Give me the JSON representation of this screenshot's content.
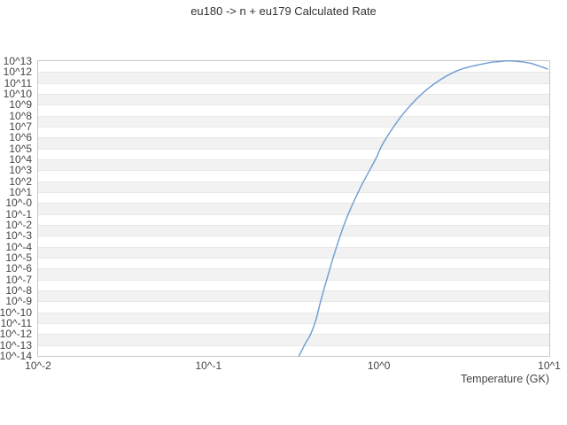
{
  "title": "eu180 -> n + eu179 Calculated Rate",
  "x_axis": {
    "label": "Temperature (GK)",
    "ticks": [
      {
        "label": "10^-2",
        "value": 0.01
      },
      {
        "label": "10^-1",
        "value": 0.1
      },
      {
        "label": "10^0",
        "value": 1
      },
      {
        "label": "10^1",
        "value": 10
      }
    ]
  },
  "y_axis": {
    "ticks": [
      {
        "label": "10^13",
        "value": 10000000000000.0
      },
      {
        "label": "10^12",
        "value": 1000000000000.0
      },
      {
        "label": "10^11",
        "value": 100000000000.0
      },
      {
        "label": "10^10",
        "value": 10000000000.0
      },
      {
        "label": "10^9",
        "value": 1000000000.0
      },
      {
        "label": "10^8",
        "value": 100000000.0
      },
      {
        "label": "10^7",
        "value": 10000000.0
      },
      {
        "label": "10^6",
        "value": 1000000.0
      },
      {
        "label": "10^5",
        "value": 100000.0
      },
      {
        "label": "10^4",
        "value": 10000.0
      },
      {
        "label": "10^3",
        "value": 1000.0
      },
      {
        "label": "10^2",
        "value": 100.0
      },
      {
        "label": "10^1",
        "value": 10.0
      },
      {
        "label": "10^-0",
        "value": 1
      },
      {
        "label": "10^-1",
        "value": 0.1
      },
      {
        "label": "10^-2",
        "value": 0.01
      },
      {
        "label": "10^-3",
        "value": 0.001
      },
      {
        "label": "10^-4",
        "value": 0.0001
      },
      {
        "label": "10^-5",
        "value": 1e-05
      },
      {
        "label": "10^-6",
        "value": 1e-06
      },
      {
        "label": "10^-7",
        "value": 1e-07
      },
      {
        "label": "10^-8",
        "value": 1e-08
      },
      {
        "label": "10^-9",
        "value": 1e-09
      },
      {
        "label": "10^-10",
        "value": 1e-10
      },
      {
        "label": "10^-11",
        "value": 1e-11
      },
      {
        "label": "10^-12",
        "value": 1e-12
      },
      {
        "label": "10^-13",
        "value": 1e-13
      },
      {
        "label": "10^-14",
        "value": 1e-14
      }
    ]
  },
  "colors": {
    "background": "#ffffff",
    "stripe": "#f2f2f2",
    "gridline": "#e8e8e8",
    "plot_border": "#c9c9c9",
    "line": "#6c9bd2",
    "title_text": "#333333",
    "tick_text": "#444444"
  },
  "chart_data": {
    "type": "line",
    "title": "eu180 -> n + eu179 Calculated Rate",
    "xlabel": "Temperature (GK)",
    "ylabel": "",
    "x_scale": "log",
    "y_scale": "log",
    "xlim": [
      0.01,
      10
    ],
    "ylim": [
      1e-14,
      10000000000000.0
    ],
    "grid": "horizontal-decade-stripes",
    "legend": "none",
    "series": [
      {
        "name": "calculated rate",
        "color": "#6c9bd2",
        "x": [
          0.34,
          0.372,
          0.398,
          0.427,
          0.457,
          0.501,
          0.562,
          0.646,
          0.776,
          0.955,
          1.07,
          1.41,
          1.95,
          2.88,
          4.37,
          5.01,
          5.75,
          6.76,
          7.76,
          9.12,
          9.77
        ],
        "y": [
          1e-14,
          1.6e-13,
          1e-12,
          2e-11,
          1.3e-09,
          2e-07,
          7.9e-05,
          0.04,
          23.0,
          10000.0,
          400000.0,
          200000000.0,
          32000000000.0,
          1300000000000.0,
          6900000000000.0,
          8900000000000.0,
          10700000000000.0,
          8900000000000.0,
          6300000000000.0,
          2800000000000.0,
          1900000000000.0
        ]
      }
    ]
  }
}
